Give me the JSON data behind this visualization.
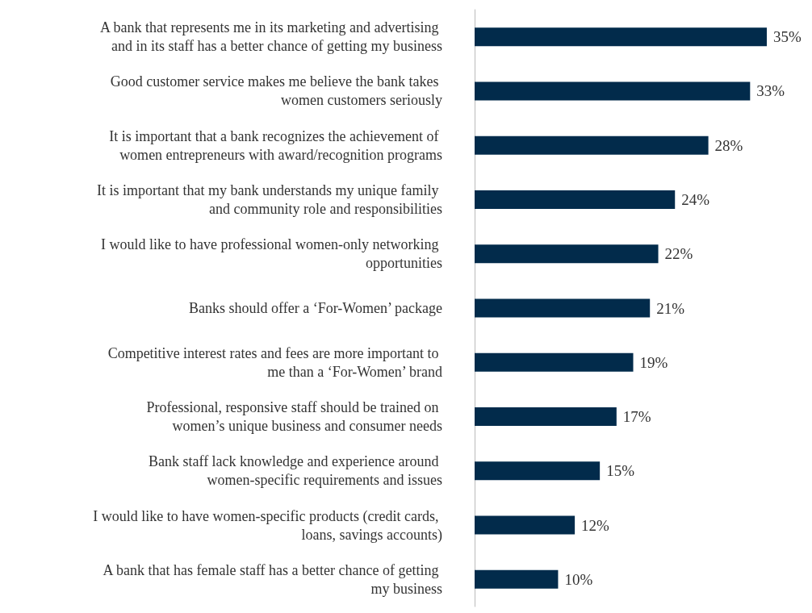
{
  "chart_data": {
    "type": "bar",
    "orientation": "horizontal",
    "categories": [
      "A bank that represents me in its marketing and advertising and in its staff has a better chance of getting my business",
      "Good customer service makes me believe the bank takes women customers seriously",
      "It is important that a bank recognizes the achievement of women entrepreneurs with award/recognition programs",
      "It is important that my bank understands my unique family and community role and responsibilities",
      "I would like to have professional women-only networking opportunities",
      "Banks should offer a ‘For-Women’ package",
      "Competitive interest rates and fees are more important to me than a ‘For-Women’ brand",
      "Professional, responsive staff should be trained on women’s unique business and consumer needs",
      "Bank staff lack knowledge and experience around women-specific requirements and issues",
      "I would like to have women-specific products (credit cards, loans, savings accounts)",
      "A bank that has female staff has a better chance of getting my business"
    ],
    "values": [
      35,
      33,
      28,
      24,
      22,
      21,
      19,
      17,
      15,
      12,
      10
    ],
    "value_labels": [
      "35%",
      "33%",
      "28%",
      "24%",
      "22%",
      "21%",
      "19%",
      "17%",
      "15%",
      "12%",
      "10%"
    ],
    "color": "#022b4b"
  }
}
